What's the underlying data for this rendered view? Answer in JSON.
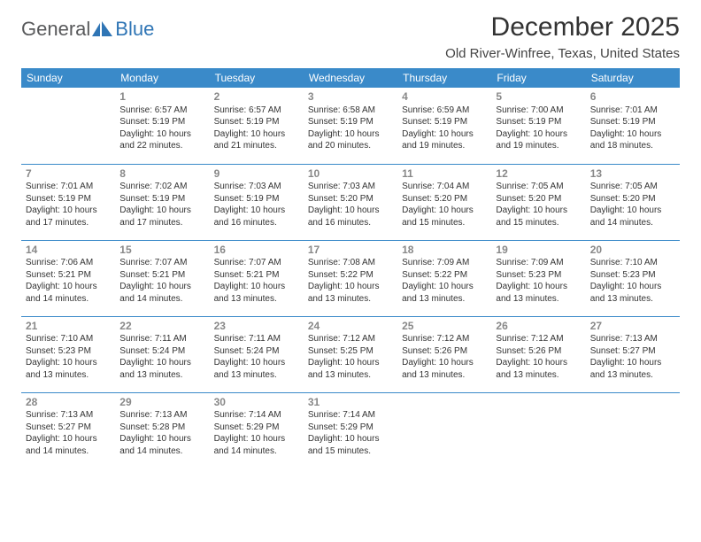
{
  "brand": {
    "general": "General",
    "blue": "Blue"
  },
  "title": "December 2025",
  "location": "Old River-Winfree, Texas, United States",
  "header_bg": "#3a8ac9",
  "header_fg": "#ffffff",
  "border_color": "#3a8ac9",
  "daynum_color": "#888888",
  "text_color": "#333333",
  "days_of_week": [
    "Sunday",
    "Monday",
    "Tuesday",
    "Wednesday",
    "Thursday",
    "Friday",
    "Saturday"
  ],
  "weeks": [
    [
      null,
      {
        "n": "1",
        "sr": "Sunrise: 6:57 AM",
        "ss": "Sunset: 5:19 PM",
        "d1": "Daylight: 10 hours",
        "d2": "and 22 minutes."
      },
      {
        "n": "2",
        "sr": "Sunrise: 6:57 AM",
        "ss": "Sunset: 5:19 PM",
        "d1": "Daylight: 10 hours",
        "d2": "and 21 minutes."
      },
      {
        "n": "3",
        "sr": "Sunrise: 6:58 AM",
        "ss": "Sunset: 5:19 PM",
        "d1": "Daylight: 10 hours",
        "d2": "and 20 minutes."
      },
      {
        "n": "4",
        "sr": "Sunrise: 6:59 AM",
        "ss": "Sunset: 5:19 PM",
        "d1": "Daylight: 10 hours",
        "d2": "and 19 minutes."
      },
      {
        "n": "5",
        "sr": "Sunrise: 7:00 AM",
        "ss": "Sunset: 5:19 PM",
        "d1": "Daylight: 10 hours",
        "d2": "and 19 minutes."
      },
      {
        "n": "6",
        "sr": "Sunrise: 7:01 AM",
        "ss": "Sunset: 5:19 PM",
        "d1": "Daylight: 10 hours",
        "d2": "and 18 minutes."
      }
    ],
    [
      {
        "n": "7",
        "sr": "Sunrise: 7:01 AM",
        "ss": "Sunset: 5:19 PM",
        "d1": "Daylight: 10 hours",
        "d2": "and 17 minutes."
      },
      {
        "n": "8",
        "sr": "Sunrise: 7:02 AM",
        "ss": "Sunset: 5:19 PM",
        "d1": "Daylight: 10 hours",
        "d2": "and 17 minutes."
      },
      {
        "n": "9",
        "sr": "Sunrise: 7:03 AM",
        "ss": "Sunset: 5:19 PM",
        "d1": "Daylight: 10 hours",
        "d2": "and 16 minutes."
      },
      {
        "n": "10",
        "sr": "Sunrise: 7:03 AM",
        "ss": "Sunset: 5:20 PM",
        "d1": "Daylight: 10 hours",
        "d2": "and 16 minutes."
      },
      {
        "n": "11",
        "sr": "Sunrise: 7:04 AM",
        "ss": "Sunset: 5:20 PM",
        "d1": "Daylight: 10 hours",
        "d2": "and 15 minutes."
      },
      {
        "n": "12",
        "sr": "Sunrise: 7:05 AM",
        "ss": "Sunset: 5:20 PM",
        "d1": "Daylight: 10 hours",
        "d2": "and 15 minutes."
      },
      {
        "n": "13",
        "sr": "Sunrise: 7:05 AM",
        "ss": "Sunset: 5:20 PM",
        "d1": "Daylight: 10 hours",
        "d2": "and 14 minutes."
      }
    ],
    [
      {
        "n": "14",
        "sr": "Sunrise: 7:06 AM",
        "ss": "Sunset: 5:21 PM",
        "d1": "Daylight: 10 hours",
        "d2": "and 14 minutes."
      },
      {
        "n": "15",
        "sr": "Sunrise: 7:07 AM",
        "ss": "Sunset: 5:21 PM",
        "d1": "Daylight: 10 hours",
        "d2": "and 14 minutes."
      },
      {
        "n": "16",
        "sr": "Sunrise: 7:07 AM",
        "ss": "Sunset: 5:21 PM",
        "d1": "Daylight: 10 hours",
        "d2": "and 13 minutes."
      },
      {
        "n": "17",
        "sr": "Sunrise: 7:08 AM",
        "ss": "Sunset: 5:22 PM",
        "d1": "Daylight: 10 hours",
        "d2": "and 13 minutes."
      },
      {
        "n": "18",
        "sr": "Sunrise: 7:09 AM",
        "ss": "Sunset: 5:22 PM",
        "d1": "Daylight: 10 hours",
        "d2": "and 13 minutes."
      },
      {
        "n": "19",
        "sr": "Sunrise: 7:09 AM",
        "ss": "Sunset: 5:23 PM",
        "d1": "Daylight: 10 hours",
        "d2": "and 13 minutes."
      },
      {
        "n": "20",
        "sr": "Sunrise: 7:10 AM",
        "ss": "Sunset: 5:23 PM",
        "d1": "Daylight: 10 hours",
        "d2": "and 13 minutes."
      }
    ],
    [
      {
        "n": "21",
        "sr": "Sunrise: 7:10 AM",
        "ss": "Sunset: 5:23 PM",
        "d1": "Daylight: 10 hours",
        "d2": "and 13 minutes."
      },
      {
        "n": "22",
        "sr": "Sunrise: 7:11 AM",
        "ss": "Sunset: 5:24 PM",
        "d1": "Daylight: 10 hours",
        "d2": "and 13 minutes."
      },
      {
        "n": "23",
        "sr": "Sunrise: 7:11 AM",
        "ss": "Sunset: 5:24 PM",
        "d1": "Daylight: 10 hours",
        "d2": "and 13 minutes."
      },
      {
        "n": "24",
        "sr": "Sunrise: 7:12 AM",
        "ss": "Sunset: 5:25 PM",
        "d1": "Daylight: 10 hours",
        "d2": "and 13 minutes."
      },
      {
        "n": "25",
        "sr": "Sunrise: 7:12 AM",
        "ss": "Sunset: 5:26 PM",
        "d1": "Daylight: 10 hours",
        "d2": "and 13 minutes."
      },
      {
        "n": "26",
        "sr": "Sunrise: 7:12 AM",
        "ss": "Sunset: 5:26 PM",
        "d1": "Daylight: 10 hours",
        "d2": "and 13 minutes."
      },
      {
        "n": "27",
        "sr": "Sunrise: 7:13 AM",
        "ss": "Sunset: 5:27 PM",
        "d1": "Daylight: 10 hours",
        "d2": "and 13 minutes."
      }
    ],
    [
      {
        "n": "28",
        "sr": "Sunrise: 7:13 AM",
        "ss": "Sunset: 5:27 PM",
        "d1": "Daylight: 10 hours",
        "d2": "and 14 minutes."
      },
      {
        "n": "29",
        "sr": "Sunrise: 7:13 AM",
        "ss": "Sunset: 5:28 PM",
        "d1": "Daylight: 10 hours",
        "d2": "and 14 minutes."
      },
      {
        "n": "30",
        "sr": "Sunrise: 7:14 AM",
        "ss": "Sunset: 5:29 PM",
        "d1": "Daylight: 10 hours",
        "d2": "and 14 minutes."
      },
      {
        "n": "31",
        "sr": "Sunrise: 7:14 AM",
        "ss": "Sunset: 5:29 PM",
        "d1": "Daylight: 10 hours",
        "d2": "and 15 minutes."
      },
      null,
      null,
      null
    ]
  ]
}
